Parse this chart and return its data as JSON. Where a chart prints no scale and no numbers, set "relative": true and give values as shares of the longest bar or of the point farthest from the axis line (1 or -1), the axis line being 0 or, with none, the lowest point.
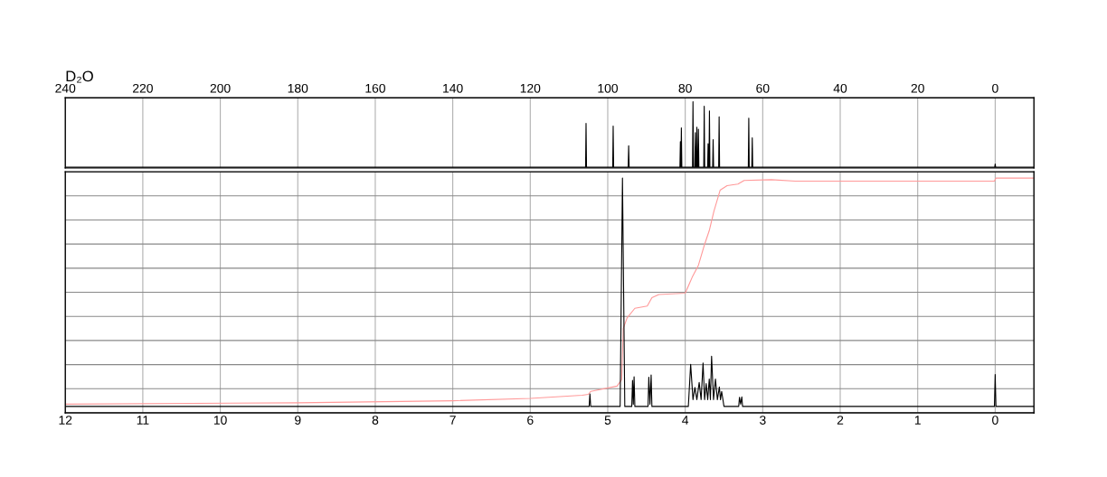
{
  "chart_data": [
    {
      "type": "line",
      "relative": true,
      "xlim": [
        240,
        -10
      ],
      "xticks": [
        240,
        220,
        200,
        180,
        160,
        140,
        120,
        100,
        80,
        60,
        40,
        20,
        0
      ],
      "grid": "x",
      "annotations": [
        "D₂O"
      ],
      "series": [
        {
          "color": "#000000",
          "x": [
            240,
            105.72,
            105.6,
            105.48,
            98.72,
            98.6,
            98.48,
            94.72,
            94.6,
            94.48,
            81.37,
            81.25,
            81.13,
            81.12,
            81.0,
            80.88,
            78.12,
            78.0,
            77.88,
            77.52,
            77.4,
            77.28,
            77.12,
            77.0,
            76.88,
            76.72,
            76.6,
            76.48,
            75.22,
            75.1,
            74.98,
            74.22,
            74.1,
            73.98,
            73.87,
            73.75,
            73.63,
            72.92,
            72.8,
            72.68,
            71.37,
            71.25,
            71.13,
            63.72,
            63.6,
            63.48,
            62.82,
            62.7,
            62.58,
            0.12,
            0,
            -0.12,
            -10
          ],
          "values": [
            0,
            0,
            0.67,
            0,
            0,
            0.63,
            0,
            0,
            0.33,
            0,
            0,
            0.39,
            0,
            0,
            0.6,
            0,
            0,
            1,
            0,
            0,
            0.53,
            0,
            0,
            0.61,
            0,
            0,
            0.58,
            0,
            0,
            0.93,
            0,
            0,
            0.36,
            0,
            0,
            0.86,
            0,
            0,
            0.42,
            0,
            0,
            0.77,
            0,
            0,
            0.75,
            0,
            0,
            0.45,
            0,
            0,
            0.05,
            0,
            0
          ]
        }
      ]
    },
    {
      "type": "line",
      "relative": true,
      "xlim": [
        12,
        -0.5
      ],
      "xticks": [
        12,
        11,
        10,
        9,
        8,
        7,
        6,
        5,
        4,
        3,
        2,
        1,
        0
      ],
      "grid": true,
      "series": [
        {
          "color": "#ff9999",
          "x": [
            12,
            9,
            7,
            6,
            5.33,
            5.25,
            5.22,
            4.88,
            4.82,
            4.8,
            4.75,
            4.65,
            4.49,
            4.43,
            4.34,
            4.0,
            3.91,
            3.83,
            3.75,
            3.69,
            3.63,
            3.55,
            3.46,
            3.32,
            3.24,
            2.89,
            2.58,
            0.01,
            -0.01,
            -0.5
          ],
          "values": [
            0.01,
            0.016,
            0.025,
            0.035,
            0.049,
            0.053,
            0.066,
            0.089,
            0.118,
            0.342,
            0.388,
            0.43,
            0.44,
            0.476,
            0.49,
            0.496,
            0.566,
            0.618,
            0.71,
            0.77,
            0.855,
            0.947,
            0.967,
            0.974,
            0.99,
            0.993,
            0.987,
            0.987,
            1,
            1
          ]
        },
        {
          "color": "#000000",
          "x": [
            12,
            5.24,
            5.23,
            5.22,
            4.84,
            4.81,
            4.78,
            4.69,
            4.68,
            4.67,
            4.66,
            4.65,
            4.48,
            4.47,
            4.455,
            4.44,
            4.43,
            3.96,
            3.93,
            3.9,
            3.875,
            3.85,
            3.82,
            3.795,
            3.77,
            3.75,
            3.73,
            3.71,
            3.69,
            3.675,
            3.66,
            3.635,
            3.61,
            3.585,
            3.56,
            3.545,
            3.53,
            3.5,
            3.31,
            3.3,
            3.285,
            3.27,
            3.26,
            0.01,
            0,
            -0.01,
            -0.5
          ],
          "values": [
            0,
            0,
            0.055,
            0,
            0,
            1,
            0,
            0,
            0.114,
            0.01,
            0.13,
            0,
            0,
            0.128,
            0.01,
            0.138,
            0,
            0,
            0.184,
            0.03,
            0.083,
            0.03,
            0.105,
            0.03,
            0.19,
            0.03,
            0.1,
            0.03,
            0.12,
            0.03,
            0.22,
            0.03,
            0.12,
            0.03,
            0.085,
            0.03,
            0.066,
            0,
            0,
            0.04,
            0.01,
            0.042,
            0,
            0,
            0.14,
            0,
            0
          ]
        }
      ]
    }
  ]
}
